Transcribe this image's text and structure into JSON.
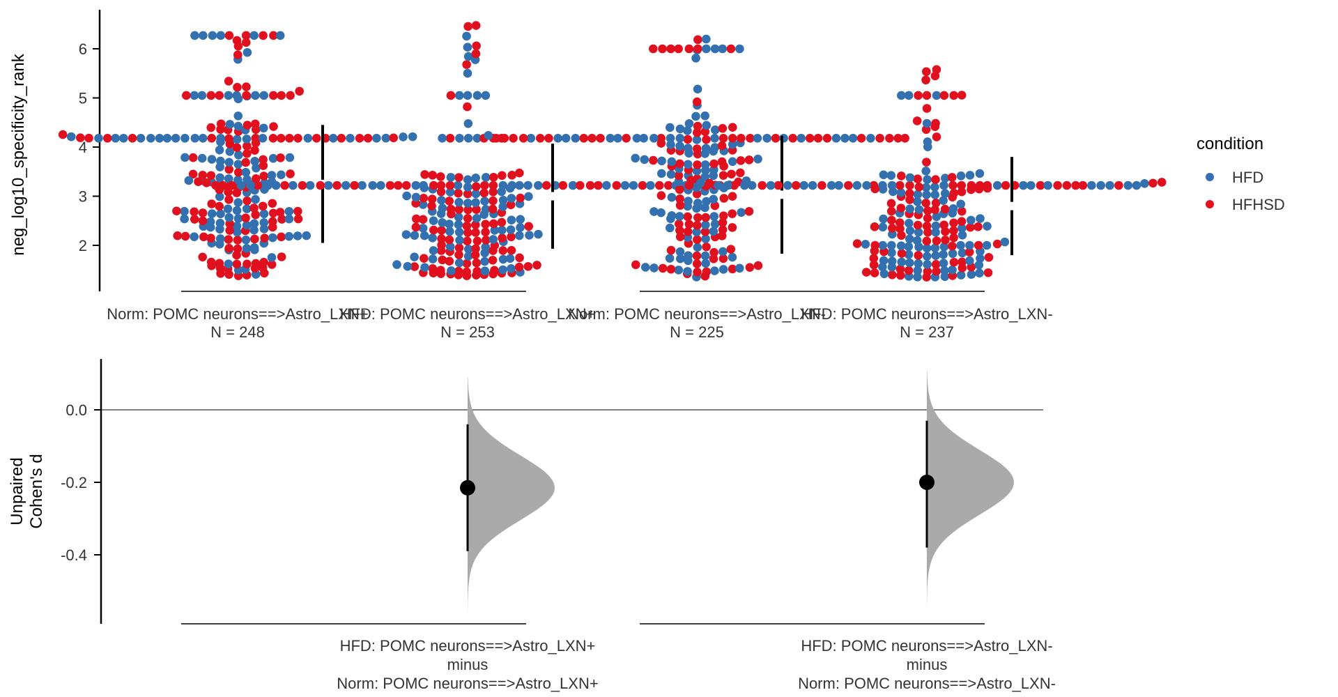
{
  "chart_data": {
    "type": "scatter",
    "subtype": "estimation-plot (swarm + effect size)",
    "top": {
      "ylabel": "neg_log10_specificity_rank",
      "yticks": [
        2,
        3,
        4,
        5,
        6
      ],
      "ylim": [
        1.2,
        6.8
      ],
      "groups": [
        {
          "label": "Norm: POMC neurons==>Astro_LXN+",
          "n_label": "N = 248",
          "n": 248,
          "mean": 3.25,
          "sd": 1.2,
          "min": 1.35,
          "max": 6.27
        },
        {
          "label": "HFD: POMC neurons==>Astro_LXN+",
          "n_label": "N = 253",
          "n": 253,
          "mean": 3.0,
          "sd": 1.07,
          "min": 1.38,
          "max": 6.55
        },
        {
          "label": "Norm: POMC neurons==>Astro_LXN-",
          "n_label": "N = 225",
          "n": 225,
          "mean": 3.03,
          "sd": 1.2,
          "min": 1.35,
          "max": 6.25
        },
        {
          "label": "HFD: POMC neurons==>Astro_LXN-",
          "n_label": "N = 237",
          "n": 237,
          "mean": 2.8,
          "sd": 1.0,
          "min": 1.35,
          "max": 5.6
        }
      ],
      "legend": {
        "title": "condition",
        "position": "right",
        "entries": [
          {
            "name": "HFD",
            "color": "#3370b0"
          },
          {
            "name": "HFHSD",
            "color": "#e0101f"
          }
        ]
      }
    },
    "bottom": {
      "ylabel_line1": "Unpaired",
      "ylabel_line2": "Cohen's d",
      "yticks": [
        "0.0",
        "-0.2",
        "-0.4"
      ],
      "ytick_values": [
        0.0,
        -0.2,
        -0.4
      ],
      "ylim": [
        -0.58,
        0.13
      ],
      "comparisons": [
        {
          "line1": "HFD: POMC neurons==>Astro_LXN+",
          "line2": "minus",
          "line3": "Norm: POMC neurons==>Astro_LXN+",
          "d": -0.215,
          "ci": [
            -0.39,
            -0.04
          ],
          "dist_range": [
            -0.56,
            0.09
          ]
        },
        {
          "line1": "HFD: POMC neurons==>Astro_LXN-",
          "line2": "minus",
          "line3": "Norm: POMC neurons==>Astro_LXN-",
          "d": -0.2,
          "ci": [
            -0.38,
            -0.03
          ],
          "dist_range": [
            -0.55,
            0.11
          ]
        }
      ]
    }
  }
}
